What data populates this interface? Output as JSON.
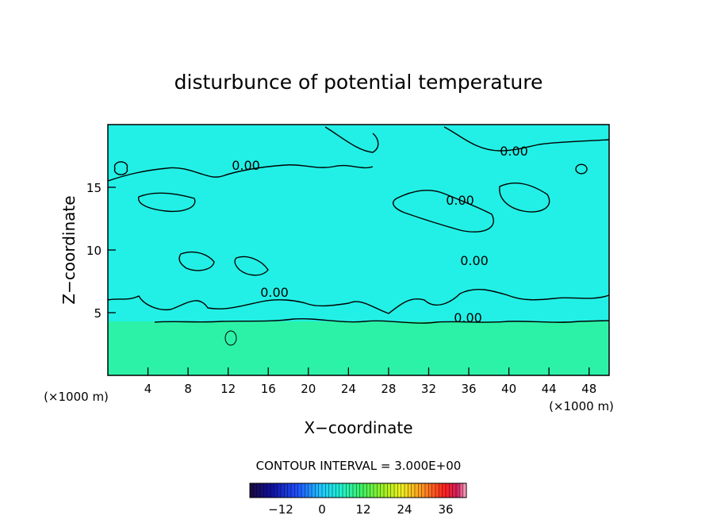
{
  "chart_data": {
    "type": "heatmap",
    "title": "disturbunce of potential temperature",
    "xlabel": "X−coordinate",
    "ylabel": "Z−coordinate",
    "x_unit": "(×1000 m)",
    "x_unit_left": "(×1000 m)",
    "xlim": [
      0,
      50
    ],
    "ylim": [
      0,
      20
    ],
    "x_ticks": [
      "4",
      "8",
      "12",
      "16",
      "20",
      "24",
      "28",
      "32",
      "36",
      "40",
      "44",
      "48"
    ],
    "y_ticks": [
      "5",
      "10",
      "15"
    ],
    "contour_interval_label": "CONTOUR INTERVAL = 3.000E+00",
    "colorbar": {
      "range": [
        -21,
        42
      ],
      "ticks": [
        "−12",
        "0",
        "12",
        "24",
        "36"
      ]
    },
    "contour_labels": [
      "0.00",
      "0.00",
      "0.00",
      "0.00",
      "0.00",
      "0.00"
    ],
    "field_summary": {
      "background_value_upper": 0,
      "lower_layer_value": 3,
      "lower_layer_top_z": 4.2
    },
    "grid": false
  },
  "colors": {
    "field_upper": "#22f0e6",
    "field_lower": "#2cf2a8",
    "contour": "#000000"
  }
}
